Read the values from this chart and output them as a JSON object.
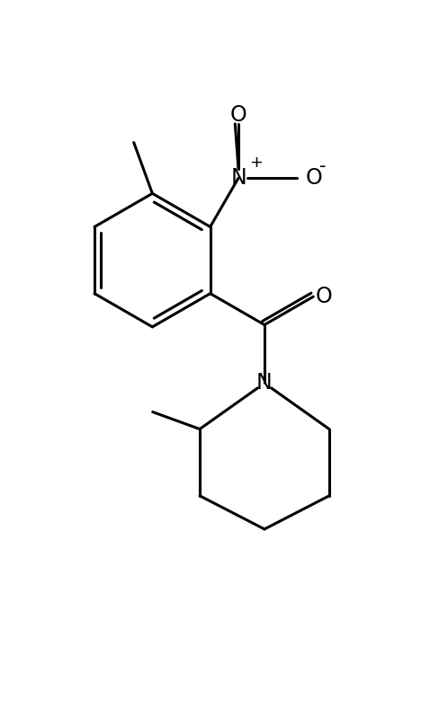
{
  "background_color": "#ffffff",
  "line_color": "#000000",
  "line_width": 2.2,
  "font_size": 15,
  "figsize": [
    4.78,
    7.88
  ],
  "dpi": 100,
  "xlim": [
    0,
    10
  ],
  "ylim": [
    0,
    16.5
  ]
}
